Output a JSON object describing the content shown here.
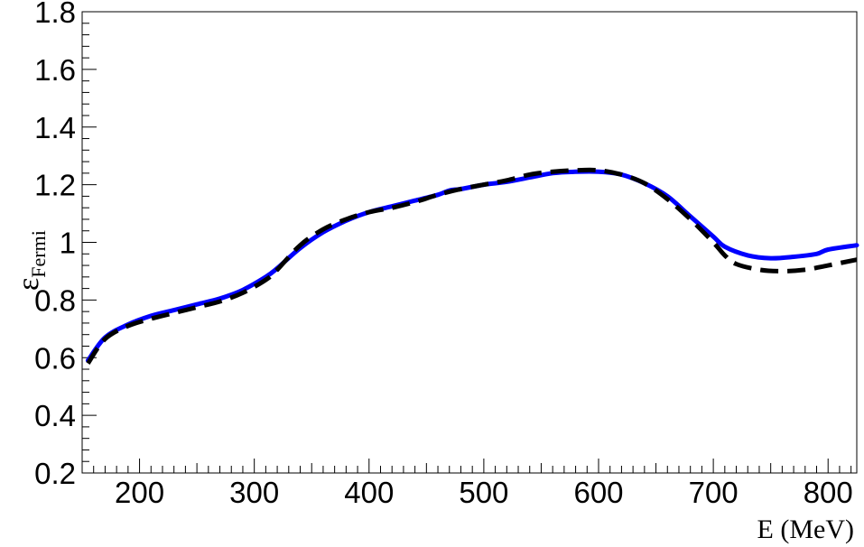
{
  "chart_data": {
    "type": "line",
    "xlabel": "E (MeV)",
    "ylabel": {
      "symbol": "ε",
      "subscript": "Fermi"
    },
    "xlim": [
      150,
      825
    ],
    "ylim": [
      0.2,
      1.8
    ],
    "x_ticks": [
      {
        "value": 200,
        "label": "200"
      },
      {
        "value": 300,
        "label": "300"
      },
      {
        "value": 400,
        "label": "400"
      },
      {
        "value": 500,
        "label": "500"
      },
      {
        "value": 600,
        "label": "600"
      },
      {
        "value": 700,
        "label": "700"
      },
      {
        "value": 800,
        "label": "800"
      }
    ],
    "y_ticks": [
      {
        "value": 0.2,
        "label": "0.2"
      },
      {
        "value": 0.4,
        "label": "0.4"
      },
      {
        "value": 0.6,
        "label": "0.6"
      },
      {
        "value": 0.8,
        "label": "0.8"
      },
      {
        "value": 1.0,
        "label": "1"
      },
      {
        "value": 1.2,
        "label": "1.2"
      },
      {
        "value": 1.4,
        "label": "1.4"
      },
      {
        "value": 1.6,
        "label": "1.6"
      },
      {
        "value": 1.8,
        "label": "1.8"
      }
    ],
    "grid": false,
    "series": [
      {
        "color": "#0000ff",
        "style": "solid",
        "x": [
          155,
          170,
          190,
          210,
          230,
          250,
          270,
          290,
          310,
          320,
          340,
          360,
          380,
          400,
          420,
          440,
          460,
          470,
          480,
          500,
          520,
          540,
          560,
          580,
          600,
          620,
          640,
          660,
          680,
          700,
          710,
          730,
          750,
          770,
          790,
          800,
          825
        ],
        "y": [
          0.59,
          0.67,
          0.715,
          0.745,
          0.765,
          0.785,
          0.805,
          0.835,
          0.88,
          0.91,
          0.98,
          1.035,
          1.075,
          1.105,
          1.125,
          1.145,
          1.165,
          1.18,
          1.185,
          1.2,
          1.21,
          1.225,
          1.24,
          1.245,
          1.245,
          1.235,
          1.205,
          1.16,
          1.09,
          1.02,
          0.985,
          0.955,
          0.945,
          0.95,
          0.96,
          0.975,
          0.99
        ]
      },
      {
        "color": "#000000",
        "style": "dashed",
        "x": [
          155,
          170,
          190,
          210,
          230,
          250,
          270,
          290,
          310,
          320,
          340,
          360,
          380,
          400,
          420,
          440,
          460,
          480,
          500,
          520,
          540,
          560,
          580,
          600,
          620,
          640,
          660,
          680,
          700,
          710,
          720,
          740,
          760,
          780,
          800,
          825
        ],
        "y": [
          0.58,
          0.665,
          0.71,
          0.735,
          0.755,
          0.775,
          0.795,
          0.825,
          0.87,
          0.905,
          0.99,
          1.045,
          1.08,
          1.105,
          1.12,
          1.14,
          1.165,
          1.185,
          1.2,
          1.215,
          1.235,
          1.245,
          1.25,
          1.25,
          1.235,
          1.205,
          1.15,
          1.08,
          1.0,
          0.955,
          0.925,
          0.905,
          0.9,
          0.905,
          0.92,
          0.94
        ]
      }
    ]
  }
}
